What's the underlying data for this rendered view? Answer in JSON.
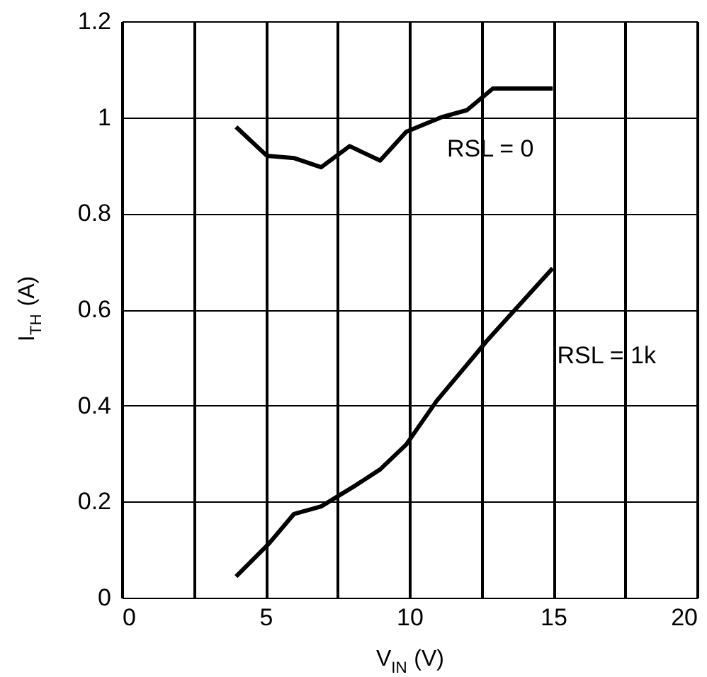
{
  "chart_data": {
    "type": "line",
    "xlabel": "V$_{IN}$ (V)",
    "ylabel": "I$_{TH}$ (A)",
    "xlim": [
      0,
      20
    ],
    "xticks": [
      0,
      {
        "value": 2.5,
        "label": null
      },
      5,
      {
        "value": 7.5,
        "label": null
      },
      10,
      {
        "value": 12.5,
        "label": null
      },
      15,
      {
        "value": 17.5,
        "label": null
      },
      20
    ],
    "ylim": [
      0,
      1.2
    ],
    "yticks": [
      0,
      0.2,
      0.4,
      0.6,
      0.8,
      1,
      1.2
    ],
    "grid": true,
    "line_style": "solid",
    "marker": "none",
    "series": [
      {
        "name": "RSL = 0",
        "color": "#000000",
        "x": [
          3.97,
          5.04,
          6.0,
          6.93,
          7.92,
          8.98,
          9.89,
          11.1,
          12.0,
          12.9,
          14.98
        ],
        "values": [
          0.98,
          0.92,
          0.915,
          0.896,
          0.94,
          0.91,
          0.97,
          1.0,
          1.015,
          1.06,
          1.06
        ]
      },
      {
        "name": "RSL = 1k",
        "color": "#000000",
        "x": [
          3.97,
          5.12,
          5.98,
          6.93,
          8.08,
          8.98,
          9.89,
          10.95,
          12.35,
          12.68,
          14.98
        ],
        "values": [
          0.044,
          0.113,
          0.174,
          0.19,
          0.232,
          0.267,
          0.319,
          0.41,
          0.51,
          0.534,
          0.686
        ]
      }
    ]
  }
}
